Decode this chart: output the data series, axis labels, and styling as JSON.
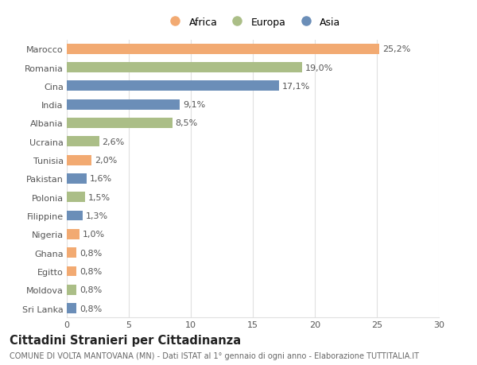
{
  "countries": [
    "Marocco",
    "Romania",
    "Cina",
    "India",
    "Albania",
    "Ucraina",
    "Tunisia",
    "Pakistan",
    "Polonia",
    "Filippine",
    "Nigeria",
    "Ghana",
    "Egitto",
    "Moldova",
    "Sri Lanka"
  ],
  "values": [
    25.2,
    19.0,
    17.1,
    9.1,
    8.5,
    2.6,
    2.0,
    1.6,
    1.5,
    1.3,
    1.0,
    0.8,
    0.8,
    0.8,
    0.8
  ],
  "labels": [
    "25,2%",
    "19,0%",
    "17,1%",
    "9,1%",
    "8,5%",
    "2,6%",
    "2,0%",
    "1,6%",
    "1,5%",
    "1,3%",
    "1,0%",
    "0,8%",
    "0,8%",
    "0,8%",
    "0,8%"
  ],
  "continents": [
    "Africa",
    "Europa",
    "Asia",
    "Asia",
    "Europa",
    "Europa",
    "Africa",
    "Asia",
    "Europa",
    "Asia",
    "Africa",
    "Africa",
    "Africa",
    "Europa",
    "Asia"
  ],
  "colors": {
    "Africa": "#F2AA72",
    "Europa": "#ABBE87",
    "Asia": "#6B8EB8"
  },
  "legend_labels": [
    "Africa",
    "Europa",
    "Asia"
  ],
  "legend_colors": [
    "#F2AA72",
    "#ABBE87",
    "#6B8EB8"
  ],
  "xlim": [
    0,
    30
  ],
  "xticks": [
    0,
    5,
    10,
    15,
    20,
    25,
    30
  ],
  "title": "Cittadini Stranieri per Cittadinanza",
  "subtitle": "COMUNE DI VOLTA MANTOVANA (MN) - Dati ISTAT al 1° gennaio di ogni anno - Elaborazione TUTTITALIA.IT",
  "background_color": "#ffffff",
  "grid_color": "#e0e0e0",
  "bar_height": 0.55,
  "label_fontsize": 8.0,
  "tick_fontsize": 8.0,
  "title_fontsize": 10.5,
  "subtitle_fontsize": 7.0
}
